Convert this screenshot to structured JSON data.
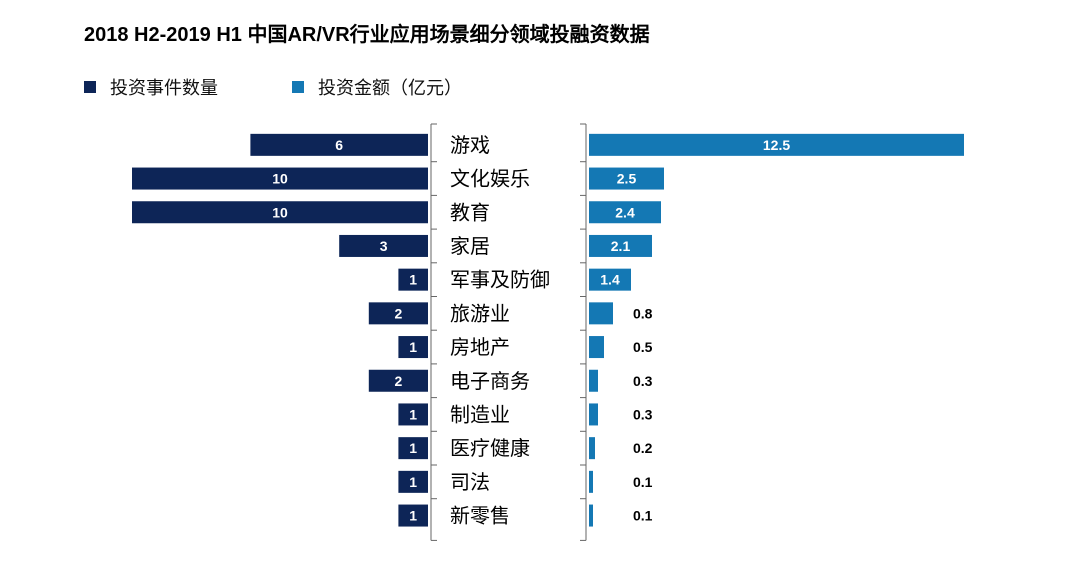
{
  "chart_data": {
    "type": "bar",
    "orientation": "horizontal-butterfly",
    "title": "2018 H2-2019 H1 中国AR/VR行业应用场景细分领域投融资数据",
    "categories": [
      "游戏",
      "文化娱乐",
      "教育",
      "家居",
      "军事及防御",
      "旅游业",
      "房地产",
      "电子商务",
      "制造业",
      "医疗健康",
      "司法",
      "新零售"
    ],
    "series": [
      {
        "name": "投资事件数量",
        "color": "#0d2557",
        "side": "left",
        "values": [
          6,
          10,
          10,
          3,
          1,
          2,
          1,
          2,
          1,
          1,
          1,
          1
        ],
        "labels": [
          "6",
          "10",
          "10",
          "3",
          "1",
          "2",
          "1",
          "2",
          "1",
          "1",
          "1",
          "1"
        ]
      },
      {
        "name": "投资金额（亿元）",
        "color": "#1478b4",
        "side": "right",
        "values": [
          12.5,
          2.5,
          2.4,
          2.1,
          1.4,
          0.8,
          0.5,
          0.3,
          0.3,
          0.2,
          0.1,
          0.1
        ],
        "labels": [
          "12.5",
          "2.5",
          "2.4",
          "2.1",
          "1.4",
          "0.8",
          "0.5",
          "0.3",
          "0.3",
          "0.2",
          "0.1",
          "0.1"
        ]
      }
    ],
    "legend": "top-left",
    "grid": false
  }
}
